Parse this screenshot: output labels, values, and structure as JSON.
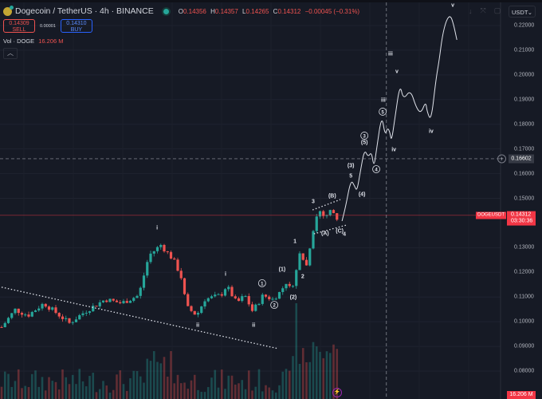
{
  "header": {
    "symbol_title": "Dogecoin / TetherUS · 4h · BINANCE",
    "ohlc": {
      "o_label": "O",
      "o": "0.14356",
      "h_label": "H",
      "h": "0.14357",
      "l_label": "L",
      "l": "0.14265",
      "c_label": "C",
      "c": "0.14312",
      "change": "−0.00045 (−0.31%)"
    },
    "sell_price": "0.14309",
    "sell_label": "SELL",
    "spread": "0.00001",
    "buy_price": "0.14310",
    "buy_label": "BUY",
    "volume_label": "Vol · DOGE",
    "volume_value": "16.206 M",
    "collapse_icon": "chevron-up-icon"
  },
  "toolbar": {
    "currency": "USDT",
    "icons": [
      "arrow-down-icon",
      "collapse-icon",
      "fullscreen-icon"
    ]
  },
  "axis": {
    "ticks": [
      "0.22000",
      "0.21000",
      "0.20000",
      "0.19000",
      "0.18000",
      "0.17000",
      "0.16000",
      "0.15000",
      "0.13000",
      "0.12000",
      "0.11000",
      "0.10000",
      "0.09000",
      "0.08000"
    ],
    "crosshair_price": "0.16602",
    "symbol_tag": "DOGEUSDT",
    "last_price": "0.14312",
    "countdown": "03:30:36",
    "volume_tag": "16.206 M"
  },
  "colors": {
    "up": "#26a69a",
    "down": "#ef5350",
    "bg": "#161a25",
    "grid": "#1f2330",
    "annotation": "#e0e3eb"
  },
  "chart_data": {
    "type": "candlestick",
    "price_range": [
      0.074,
      0.2295
    ],
    "last_price": 0.14312,
    "crosshair": {
      "bar": 113.6,
      "price": 0.16602
    },
    "close_path": [
      [
        0,
        0.0978
      ],
      [
        4,
        0.1049
      ],
      [
        7.8,
        0.1026
      ],
      [
        12.5,
        0.1075
      ],
      [
        20,
        0.0994
      ],
      [
        24.7,
        0.1042
      ],
      [
        30.6,
        0.1091
      ],
      [
        35.3,
        0.1075
      ],
      [
        40.5,
        0.1107
      ],
      [
        43.5,
        0.1269
      ],
      [
        47,
        0.1311
      ],
      [
        50.6,
        0.1253
      ],
      [
        52.9,
        0.1188
      ],
      [
        54.6,
        0.1059
      ],
      [
        57.6,
        0.1026
      ],
      [
        60,
        0.1091
      ],
      [
        64.7,
        0.1107
      ],
      [
        66.4,
        0.1146
      ],
      [
        69.4,
        0.1075
      ],
      [
        71.8,
        0.1107
      ],
      [
        74.1,
        0.1042
      ],
      [
        77.2,
        0.1107
      ],
      [
        80,
        0.1091
      ],
      [
        82.4,
        0.1123
      ],
      [
        84.2,
        0.1165
      ],
      [
        85.4,
        0.1123
      ],
      [
        86.6,
        0.1188
      ],
      [
        88.2,
        0.1285
      ],
      [
        89.9,
        0.122
      ],
      [
        91.8,
        0.1366
      ],
      [
        93.6,
        0.1456
      ],
      [
        95.3,
        0.1424
      ],
      [
        97.6,
        0.1456
      ],
      [
        98.8,
        0.1414
      ],
      [
        99.8,
        0.1431
      ]
    ],
    "projection": [
      [
        100.5,
        0.1408
      ],
      [
        101.6,
        0.1469
      ],
      [
        103.1,
        0.1576
      ],
      [
        104.2,
        0.155
      ],
      [
        104.9,
        0.1528
      ],
      [
        105.9,
        0.1608
      ],
      [
        107.1,
        0.1699
      ],
      [
        108.2,
        0.1667
      ],
      [
        109.2,
        0.1689
      ],
      [
        109.9,
        0.1625
      ],
      [
        110.6,
        0.1689
      ],
      [
        112.2,
        0.1841
      ],
      [
        113.2,
        0.1754
      ],
      [
        113.9,
        0.1786
      ],
      [
        114.6,
        0.177
      ],
      [
        115.1,
        0.1728
      ],
      [
        116.2,
        0.1835
      ],
      [
        117.6,
        0.1964
      ],
      [
        118.6,
        0.1899
      ],
      [
        120.7,
        0.1941
      ],
      [
        122.4,
        0.1867
      ],
      [
        123.8,
        0.1844
      ],
      [
        125.2,
        0.1893
      ],
      [
        125.6,
        0.1851
      ],
      [
        126.8,
        0.1812
      ],
      [
        128.2,
        0.198
      ],
      [
        129.2,
        0.2061
      ],
      [
        130.1,
        0.2158
      ],
      [
        131.3,
        0.2223
      ],
      [
        132.5,
        0.2242
      ],
      [
        133.4,
        0.2206
      ],
      [
        134.4,
        0.2142
      ]
    ],
    "trendline": [
      [
        0,
        0.114
      ],
      [
        81.6,
        0.0891
      ]
    ],
    "wedge_upper": [
      [
        91.8,
        0.1453
      ],
      [
        100,
        0.1495
      ]
    ],
    "wedge_lower": [
      [
        92.2,
        0.1356
      ],
      [
        101.9,
        0.1392
      ]
    ],
    "wave_labels": [
      {
        "text": "i",
        "bar": 45.9,
        "price": 0.1382,
        "circled": false
      },
      {
        "text": "ii",
        "bar": 57.9,
        "price": 0.0988,
        "circled": false
      },
      {
        "text": "i",
        "bar": 66.1,
        "price": 0.1195,
        "circled": false
      },
      {
        "text": "ii",
        "bar": 74.4,
        "price": 0.0988,
        "circled": false
      },
      {
        "text": "1",
        "bar": 76.9,
        "price": 0.1156,
        "circled": true
      },
      {
        "text": "2",
        "bar": 80.5,
        "price": 0.1068,
        "circled": true
      },
      {
        "text": "(1)",
        "bar": 82.8,
        "price": 0.1214,
        "circled": false
      },
      {
        "text": "(2)",
        "bar": 86.1,
        "price": 0.1101,
        "circled": false
      },
      {
        "text": "1",
        "bar": 86.6,
        "price": 0.1327,
        "circled": false
      },
      {
        "text": "2",
        "bar": 88.9,
        "price": 0.1185,
        "circled": false
      },
      {
        "text": "3",
        "bar": 92,
        "price": 0.1489,
        "circled": false
      },
      {
        "text": "(B)",
        "bar": 97.6,
        "price": 0.1511,
        "circled": false
      },
      {
        "text": "(A)",
        "bar": 95.5,
        "price": 0.1359,
        "circled": false
      },
      {
        "text": "(C)",
        "bar": 99.8,
        "price": 0.1369,
        "circled": false
      },
      {
        "text": "4",
        "bar": 101.2,
        "price": 0.1356,
        "circled": false
      },
      {
        "text": "5",
        "bar": 103.1,
        "price": 0.1592,
        "circled": false
      },
      {
        "text": "(3)",
        "bar": 103.1,
        "price": 0.1634,
        "circled": false
      },
      {
        "text": "(4)",
        "bar": 106.4,
        "price": 0.1518,
        "circled": false
      },
      {
        "text": "3",
        "bar": 107.1,
        "price": 0.1754,
        "circled": true
      },
      {
        "text": "(5)",
        "bar": 107.1,
        "price": 0.1728,
        "circled": false
      },
      {
        "text": "4",
        "bar": 110.6,
        "price": 0.1618,
        "circled": true
      },
      {
        "text": "5",
        "bar": 112.5,
        "price": 0.1851,
        "circled": true
      },
      {
        "text": "iii",
        "bar": 112.7,
        "price": 0.1899,
        "circled": false
      },
      {
        "text": "iii",
        "bar": 114.8,
        "price": 0.2087,
        "circled": false
      },
      {
        "text": "iv",
        "bar": 115.8,
        "price": 0.1699,
        "circled": false
      },
      {
        "text": "v",
        "bar": 116.7,
        "price": 0.2016,
        "circled": false
      },
      {
        "text": "iv",
        "bar": 126.8,
        "price": 0.1773,
        "circled": false
      },
      {
        "text": "v",
        "bar": 133.2,
        "price": 0.2284,
        "circled": false
      }
    ]
  }
}
